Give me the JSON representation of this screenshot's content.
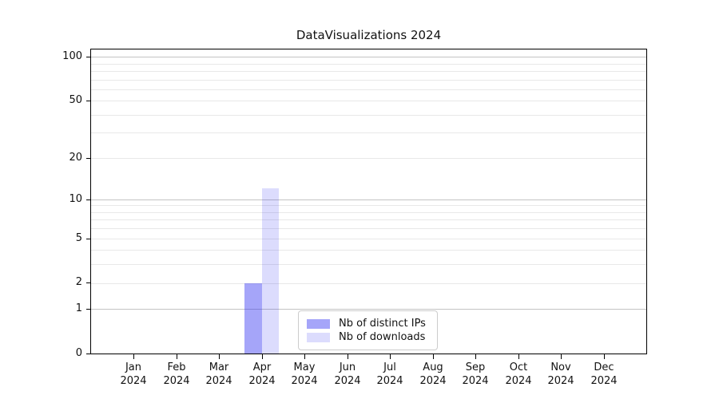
{
  "title": "DataVisualizations 2024",
  "chart_data": {
    "type": "bar",
    "title": "DataVisualizations 2024",
    "months": [
      "Jan",
      "Feb",
      "Mar",
      "Apr",
      "May",
      "Jun",
      "Jul",
      "Aug",
      "Sep",
      "Oct",
      "Nov",
      "Dec"
    ],
    "year_label": "2024",
    "series": [
      {
        "name": "Nb of distinct IPs",
        "color": "rgba(40,40,240,0.42)",
        "values": [
          0,
          0,
          0,
          2,
          0,
          0,
          0,
          0,
          0,
          0,
          0,
          0
        ]
      },
      {
        "name": "Nb of downloads",
        "color": "rgba(40,40,240,0.16)",
        "values": [
          0,
          0,
          0,
          12,
          0,
          0,
          0,
          0,
          0,
          0,
          0,
          0
        ]
      }
    ],
    "yscale": "log1p",
    "ylim": [
      0,
      112
    ],
    "yticks": [
      0,
      1,
      2,
      5,
      10,
      20,
      50,
      100
    ],
    "grid_major": [
      1,
      10,
      100
    ],
    "grid_minor": [
      2,
      3,
      4,
      5,
      6,
      7,
      8,
      9,
      20,
      30,
      40,
      50,
      60,
      70,
      80,
      90
    ],
    "legend_position": "lower-center",
    "grid_color_major": "#c3c3c3",
    "grid_color_minor": "#e8e8e8",
    "xlabel": "",
    "ylabel": ""
  }
}
